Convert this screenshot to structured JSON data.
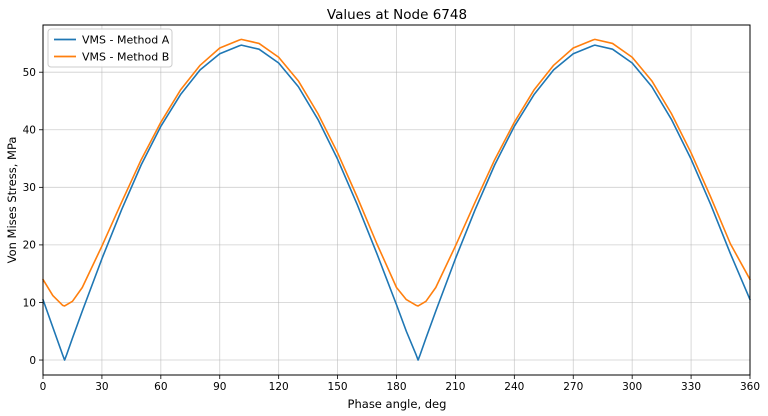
{
  "chart_data": {
    "type": "line",
    "title": "Values at Node 6748",
    "xlabel": "Phase angle, deg",
    "ylabel": "Von Mises Stress, MPa",
    "xlim": [
      0,
      360
    ],
    "ylim": [
      -2.6,
      58.2
    ],
    "xticks": [
      0,
      30,
      60,
      90,
      120,
      150,
      180,
      210,
      240,
      270,
      300,
      330,
      360
    ],
    "yticks": [
      0,
      10,
      20,
      30,
      40,
      50
    ],
    "grid": true,
    "legend_position": "upper-left",
    "series": [
      {
        "name": "VMS - Method A",
        "color": "#1f77b4",
        "x": [
          0,
          5,
          10,
          11,
          12,
          15,
          20,
          30,
          40,
          50,
          60,
          70,
          80,
          90,
          100,
          101,
          110,
          120,
          130,
          140,
          150,
          160,
          170,
          180,
          185,
          190,
          191,
          192,
          195,
          200,
          210,
          220,
          230,
          240,
          250,
          260,
          270,
          280,
          281,
          290,
          300,
          310,
          320,
          330,
          340,
          350,
          360
        ],
        "y": [
          10.5,
          5.7,
          0.9,
          0.0,
          0.9,
          3.8,
          8.5,
          17.6,
          26.1,
          33.9,
          40.6,
          46.1,
          50.4,
          53.2,
          54.6,
          54.7,
          54.0,
          51.6,
          47.5,
          41.8,
          34.9,
          27.0,
          18.5,
          9.6,
          5.0,
          0.9,
          0.0,
          0.9,
          3.8,
          8.5,
          17.6,
          26.1,
          33.9,
          40.6,
          46.1,
          50.4,
          53.2,
          54.6,
          54.7,
          54.0,
          51.6,
          47.5,
          41.8,
          34.9,
          27.0,
          18.5,
          10.5
        ]
      },
      {
        "name": "VMS - Method B",
        "color": "#ff7f0e",
        "x": [
          0,
          5,
          10,
          11,
          15,
          20,
          30,
          40,
          50,
          60,
          70,
          80,
          90,
          100,
          101,
          110,
          120,
          130,
          140,
          150,
          160,
          170,
          180,
          185,
          190,
          191,
          195,
          200,
          210,
          220,
          230,
          240,
          250,
          260,
          270,
          280,
          281,
          290,
          300,
          310,
          320,
          330,
          340,
          350,
          360
        ],
        "y": [
          14.0,
          11.2,
          9.5,
          9.4,
          10.2,
          12.6,
          19.8,
          27.4,
          34.8,
          41.3,
          46.9,
          51.2,
          54.2,
          55.6,
          55.7,
          55.0,
          52.6,
          48.5,
          42.8,
          36.0,
          28.3,
          20.2,
          12.6,
          10.5,
          9.5,
          9.4,
          10.2,
          12.6,
          19.8,
          27.4,
          34.8,
          41.3,
          46.9,
          51.2,
          54.2,
          55.6,
          55.7,
          55.0,
          52.6,
          48.5,
          42.8,
          36.0,
          28.3,
          20.2,
          14.0
        ]
      }
    ]
  }
}
